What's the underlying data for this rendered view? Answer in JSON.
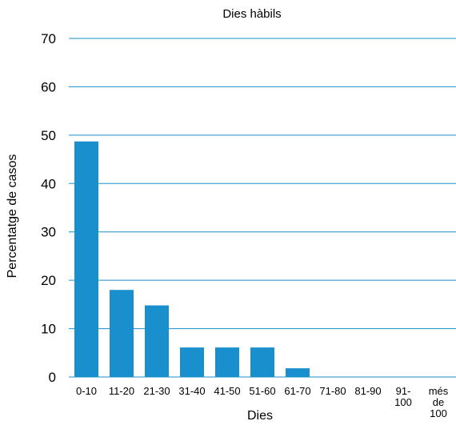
{
  "chart_data": {
    "type": "bar",
    "title": "Dies hàbils",
    "xlabel": "Dies",
    "ylabel": "Percentatge de casos",
    "ylim": [
      0,
      70
    ],
    "yticks": [
      0,
      10,
      20,
      30,
      40,
      50,
      60,
      70
    ],
    "grid": true,
    "categories": [
      "0-10",
      "11-20",
      "21-30",
      "31-40",
      "41-50",
      "51-60",
      "61-70",
      "71-80",
      "81-90",
      "91-100",
      "més de 100"
    ],
    "category_lines": [
      [
        "0-10"
      ],
      [
        "11-20"
      ],
      [
        "21-30"
      ],
      [
        "31-40"
      ],
      [
        "41-50"
      ],
      [
        "51-60"
      ],
      [
        "61-70"
      ],
      [
        "71-80"
      ],
      [
        "81-90"
      ],
      [
        "91-",
        "100"
      ],
      [
        "més",
        "de",
        "100"
      ]
    ],
    "values": [
      48.7,
      18.0,
      14.8,
      6.1,
      6.1,
      6.1,
      1.8,
      0,
      0,
      0,
      0
    ],
    "colors": {
      "bar": "#1a8fcd",
      "grid": "#1a8fcd"
    }
  }
}
